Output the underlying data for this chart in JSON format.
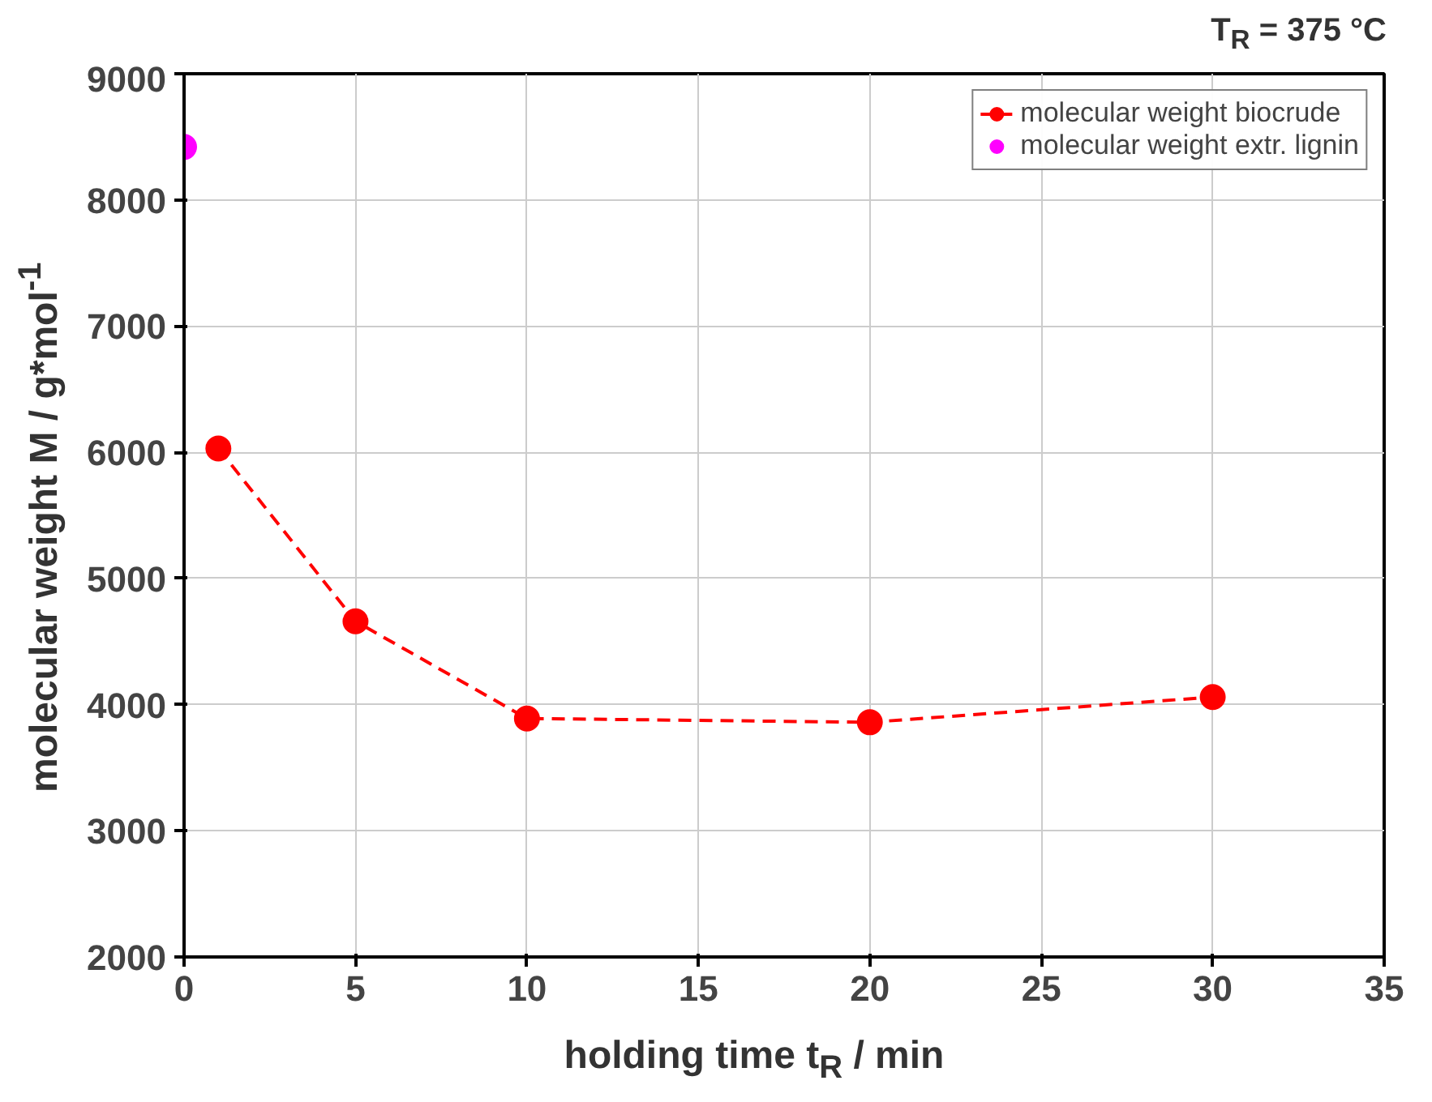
{
  "chart_data": {
    "type": "line",
    "xlabel": "holding time t$_{R}$ / min",
    "ylabel": "molecular weight M / g*mol$^{-1}$",
    "annotations": [
      "T$_{R}$ = 375 °C"
    ],
    "xlim": [
      0,
      35
    ],
    "xticks": [
      0,
      5,
      10,
      15,
      20,
      25,
      30,
      35
    ],
    "ylim": [
      2000,
      9000
    ],
    "yticks": [
      2000,
      3000,
      4000,
      5000,
      6000,
      7000,
      8000,
      9000
    ],
    "grid": true,
    "legend": "top right",
    "series": [
      {
        "name": "molecular weight biocrude",
        "color": "#ff0000",
        "marker": "circle",
        "line_style": "dashed",
        "x": [
          1,
          5,
          10,
          20,
          30
        ],
        "values": [
          6030,
          4660,
          3890,
          3860,
          4060
        ]
      },
      {
        "name": "molecular weight extr. lignin",
        "type": "scatter",
        "color": "#ff00ff",
        "marker": "circle",
        "x": [
          0
        ],
        "values": [
          8420
        ]
      }
    ]
  }
}
